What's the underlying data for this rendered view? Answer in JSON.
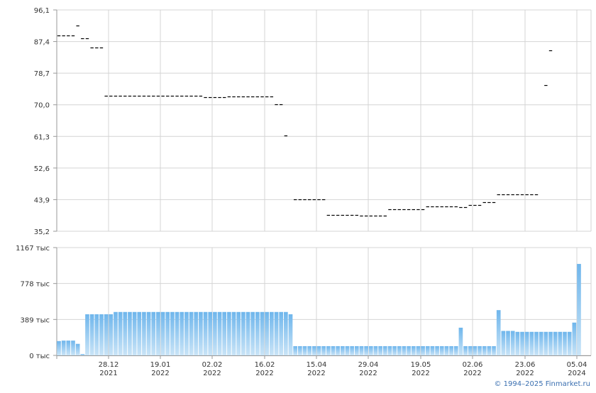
{
  "copyright": "© 1994–2025 Finmarket.ru",
  "colors": {
    "price_mark": "#000000",
    "volume_bar_top": "#6fb6ec",
    "volume_bar_bottom": "#c9e4f7",
    "grid": "#d4d4d4",
    "axis": "#999999"
  },
  "chart_data": [
    {
      "type": "scatter",
      "marker": "dash",
      "y_ticks": [
        "96,1",
        "87,4",
        "78,7",
        "70,0",
        "61,3",
        "52,6",
        "43,9",
        "35,2"
      ],
      "ylim": [
        35.2,
        96.1
      ],
      "grid": true,
      "values": [
        89.1,
        89.1,
        89.1,
        89.1,
        91.9,
        88.2,
        88.2,
        85.8,
        85.8,
        85.8,
        72.5,
        72.5,
        72.5,
        72.5,
        72.5,
        72.5,
        72.5,
        72.5,
        72.5,
        72.5,
        72.5,
        72.5,
        72.5,
        72.5,
        72.5,
        72.5,
        72.5,
        72.5,
        72.5,
        72.5,
        72.5,
        72.0,
        72.0,
        72.0,
        72.0,
        72.0,
        72.2,
        72.2,
        72.2,
        72.2,
        72.2,
        72.2,
        72.2,
        72.2,
        72.2,
        72.2,
        70.2,
        70.2,
        61.5,
        null,
        43.9,
        43.9,
        43.9,
        43.9,
        43.9,
        43.9,
        43.9,
        39.7,
        39.7,
        39.7,
        39.7,
        39.7,
        39.7,
        39.7,
        39.5,
        39.5,
        39.5,
        39.5,
        39.5,
        39.5,
        41.3,
        41.3,
        41.3,
        41.3,
        41.3,
        41.3,
        41.3,
        41.3,
        42.0,
        42.0,
        42.0,
        42.0,
        42.0,
        42.0,
        42.0,
        41.8,
        41.8,
        42.5,
        42.5,
        42.5,
        43.3,
        43.3,
        43.3,
        45.3,
        45.3,
        45.3,
        45.3,
        45.3,
        45.3,
        45.3,
        45.3,
        45.3,
        null,
        75.5,
        85.0
      ]
    },
    {
      "type": "bar",
      "y_ticks": [
        "1167 тыс",
        "778 тыс",
        "389 тыс",
        "0 тыс"
      ],
      "ylim": [
        0,
        1167
      ],
      "grid": true,
      "values": [
        155,
        160,
        160,
        160,
        125,
        15,
        445,
        445,
        445,
        445,
        445,
        445,
        470,
        470,
        470,
        470,
        470,
        470,
        470,
        470,
        470,
        470,
        470,
        470,
        470,
        470,
        470,
        470,
        470,
        470,
        470,
        470,
        470,
        470,
        470,
        470,
        470,
        470,
        470,
        470,
        470,
        470,
        470,
        470,
        470,
        470,
        470,
        470,
        470,
        445,
        100,
        100,
        100,
        100,
        100,
        100,
        100,
        100,
        100,
        100,
        100,
        100,
        100,
        100,
        100,
        100,
        100,
        100,
        100,
        100,
        100,
        100,
        100,
        100,
        100,
        100,
        100,
        100,
        100,
        100,
        100,
        100,
        100,
        100,
        100,
        300,
        100,
        100,
        100,
        100,
        100,
        100,
        100,
        490,
        265,
        265,
        265,
        255,
        255,
        255,
        255,
        255,
        255,
        255,
        255,
        255,
        255,
        255,
        255,
        355,
        990
      ]
    }
  ],
  "x_axis": {
    "labels": [
      {
        "day": "28.12",
        "year": "2021"
      },
      {
        "day": "19.01",
        "year": "2022"
      },
      {
        "day": "02.02",
        "year": "2022"
      },
      {
        "day": "16.02",
        "year": "2022"
      },
      {
        "day": "15.04",
        "year": "2022"
      },
      {
        "day": "29.04",
        "year": "2022"
      },
      {
        "day": "19.05",
        "year": "2022"
      },
      {
        "day": "02.06",
        "year": "2022"
      },
      {
        "day": "23.06",
        "year": "2022"
      },
      {
        "day": "05.04",
        "year": "2024"
      }
    ]
  }
}
